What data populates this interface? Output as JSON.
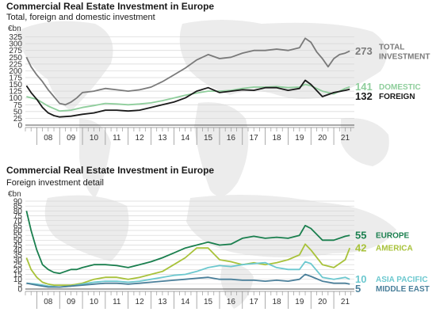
{
  "chart_data": [
    {
      "type": "line",
      "title": "Commercial Real Estate Investment in Europe",
      "subtitle": "Total, foreign and domestic investment",
      "ylabel": "€bn",
      "ylim": [
        0,
        350
      ],
      "yticks": [
        0,
        25,
        50,
        75,
        100,
        125,
        150,
        175,
        200,
        225,
        250,
        275,
        300,
        325
      ],
      "xlim": [
        2007.5,
        2021.9
      ],
      "xtick_labels": [
        "08",
        "09",
        "10",
        "11",
        "12",
        "13",
        "14",
        "15",
        "16",
        "17",
        "18",
        "19",
        "20",
        "21"
      ],
      "grid": true,
      "legend": "right",
      "series": [
        {
          "name": "TOTAL INVESTMENT",
          "end_label": "273",
          "color": "#7a7a7a",
          "x": [
            2007.55,
            2007.75,
            2008.0,
            2008.25,
            2008.5,
            2008.75,
            2009.0,
            2009.25,
            2009.5,
            2009.75,
            2010.0,
            2010.5,
            2011.0,
            2011.5,
            2012.0,
            2012.5,
            2013.0,
            2013.5,
            2014.0,
            2014.5,
            2015.0,
            2015.5,
            2016.0,
            2016.5,
            2017.0,
            2017.5,
            2018.0,
            2018.5,
            2019.0,
            2019.5,
            2019.75,
            2020.0,
            2020.25,
            2020.5,
            2020.75,
            2021.0,
            2021.25,
            2021.5,
            2021.7
          ],
          "y": [
            250,
            215,
            185,
            160,
            130,
            105,
            80,
            75,
            85,
            100,
            120,
            125,
            135,
            130,
            125,
            130,
            140,
            160,
            185,
            210,
            240,
            260,
            245,
            250,
            265,
            275,
            275,
            280,
            275,
            285,
            320,
            305,
            270,
            245,
            215,
            245,
            260,
            265,
            273
          ]
        },
        {
          "name": "DOMESTIC",
          "end_label": "141",
          "color": "#8fce9c",
          "x": [
            2007.55,
            2008.0,
            2008.5,
            2009.0,
            2009.5,
            2010.0,
            2010.5,
            2011.0,
            2011.5,
            2012.0,
            2012.5,
            2013.0,
            2013.5,
            2014.0,
            2014.5,
            2015.0,
            2015.5,
            2016.0,
            2016.5,
            2017.0,
            2017.5,
            2018.0,
            2018.5,
            2019.0,
            2019.5,
            2019.75,
            2020.0,
            2020.5,
            2021.0,
            2021.5,
            2021.7
          ],
          "y": [
            105,
            95,
            70,
            52,
            55,
            65,
            72,
            80,
            78,
            75,
            78,
            82,
            90,
            100,
            110,
            118,
            125,
            125,
            128,
            135,
            140,
            140,
            142,
            138,
            140,
            150,
            145,
            125,
            115,
            135,
            141
          ]
        },
        {
          "name": "FOREIGN",
          "end_label": "132",
          "color": "#1a1a1a",
          "x": [
            2007.55,
            2007.75,
            2008.0,
            2008.25,
            2008.5,
            2008.75,
            2009.0,
            2009.5,
            2010.0,
            2010.5,
            2011.0,
            2011.5,
            2012.0,
            2012.5,
            2013.0,
            2013.5,
            2014.0,
            2014.5,
            2015.0,
            2015.5,
            2016.0,
            2016.5,
            2017.0,
            2017.5,
            2018.0,
            2018.5,
            2019.0,
            2019.5,
            2019.75,
            2020.0,
            2020.5,
            2021.0,
            2021.5,
            2021.7
          ],
          "y": [
            145,
            120,
            95,
            65,
            45,
            35,
            30,
            33,
            40,
            45,
            55,
            55,
            52,
            55,
            65,
            75,
            85,
            100,
            125,
            138,
            120,
            125,
            130,
            128,
            138,
            138,
            128,
            135,
            165,
            150,
            105,
            120,
            128,
            132
          ]
        }
      ]
    },
    {
      "type": "line",
      "title": "Commercial Real Estate Investment in Europe",
      "subtitle": "Foreign investment detail",
      "ylabel": "€bn",
      "ylim": [
        0,
        90
      ],
      "yticks": [
        0,
        5,
        10,
        15,
        20,
        25,
        30,
        35,
        40,
        45,
        50,
        55,
        60,
        65,
        70,
        75,
        80,
        85,
        90
      ],
      "xlim": [
        2007.5,
        2021.9
      ],
      "xtick_labels": [
        "08",
        "09",
        "10",
        "11",
        "12",
        "13",
        "14",
        "15",
        "16",
        "17",
        "18",
        "19",
        "20",
        "21"
      ],
      "grid": true,
      "legend": "right",
      "series": [
        {
          "name": "EUROPE",
          "end_label": "55",
          "color": "#1a7f4e",
          "x": [
            2007.55,
            2007.75,
            2008.0,
            2008.25,
            2008.5,
            2008.75,
            2009.0,
            2009.25,
            2009.5,
            2009.75,
            2010.0,
            2010.5,
            2011.0,
            2011.5,
            2012.0,
            2012.5,
            2013.0,
            2013.5,
            2014.0,
            2014.5,
            2015.0,
            2015.5,
            2016.0,
            2016.5,
            2017.0,
            2017.5,
            2018.0,
            2018.5,
            2019.0,
            2019.5,
            2019.75,
            2020.0,
            2020.5,
            2021.0,
            2021.5,
            2021.7
          ],
          "y": [
            80,
            60,
            40,
            25,
            20,
            17,
            16,
            18,
            20,
            20,
            22,
            25,
            25,
            24,
            22,
            25,
            28,
            32,
            37,
            42,
            45,
            48,
            45,
            46,
            52,
            54,
            52,
            53,
            52,
            55,
            65,
            62,
            50,
            50,
            54,
            55
          ]
        },
        {
          "name": "AMERICA",
          "end_label": "42",
          "color": "#a8c23a",
          "x": [
            2007.55,
            2007.75,
            2008.0,
            2008.25,
            2008.5,
            2008.75,
            2009.0,
            2009.5,
            2010.0,
            2010.5,
            2011.0,
            2011.5,
            2012.0,
            2012.5,
            2013.0,
            2013.5,
            2014.0,
            2014.5,
            2015.0,
            2015.5,
            2016.0,
            2016.5,
            2017.0,
            2017.5,
            2018.0,
            2018.5,
            2019.0,
            2019.5,
            2019.75,
            2020.0,
            2020.5,
            2021.0,
            2021.5,
            2021.7
          ],
          "y": [
            32,
            20,
            12,
            7,
            5,
            4,
            4,
            4,
            6,
            10,
            12,
            12,
            10,
            12,
            15,
            18,
            25,
            32,
            42,
            42,
            30,
            28,
            25,
            27,
            25,
            27,
            30,
            35,
            46,
            40,
            25,
            22,
            30,
            42
          ]
        },
        {
          "name": "ASIA PACIFIC",
          "end_label": "10",
          "color": "#6cc8cf",
          "x": [
            2007.55,
            2008.0,
            2008.5,
            2009.0,
            2009.5,
            2010.0,
            2010.5,
            2011.0,
            2011.5,
            2012.0,
            2012.5,
            2013.0,
            2013.5,
            2014.0,
            2014.5,
            2015.0,
            2015.5,
            2016.0,
            2016.5,
            2017.0,
            2017.5,
            2018.0,
            2018.5,
            2019.0,
            2019.5,
            2019.75,
            2020.0,
            2020.5,
            2021.0,
            2021.5,
            2021.7
          ],
          "y": [
            6,
            5,
            3,
            2,
            3,
            5,
            7,
            8,
            8,
            7,
            8,
            10,
            12,
            14,
            15,
            18,
            22,
            24,
            23,
            25,
            26,
            27,
            22,
            20,
            20,
            28,
            26,
            12,
            10,
            12,
            10
          ]
        },
        {
          "name": "MIDDLE EAST",
          "end_label": "5",
          "color": "#4a7f9a",
          "x": [
            2007.55,
            2008.0,
            2008.5,
            2009.0,
            2009.5,
            2010.0,
            2010.5,
            2011.0,
            2011.5,
            2012.0,
            2012.5,
            2013.0,
            2013.5,
            2014.0,
            2014.5,
            2015.0,
            2015.5,
            2016.0,
            2016.5,
            2017.0,
            2017.5,
            2018.0,
            2018.5,
            2019.0,
            2019.5,
            2019.75,
            2020.0,
            2020.5,
            2021.0,
            2021.5,
            2021.7
          ],
          "y": [
            6,
            4,
            2,
            2,
            3,
            4,
            5,
            6,
            6,
            5,
            6,
            7,
            8,
            9,
            10,
            11,
            12,
            10,
            10,
            9,
            9,
            8,
            9,
            8,
            10,
            15,
            13,
            8,
            6,
            6,
            5
          ]
        }
      ]
    }
  ]
}
